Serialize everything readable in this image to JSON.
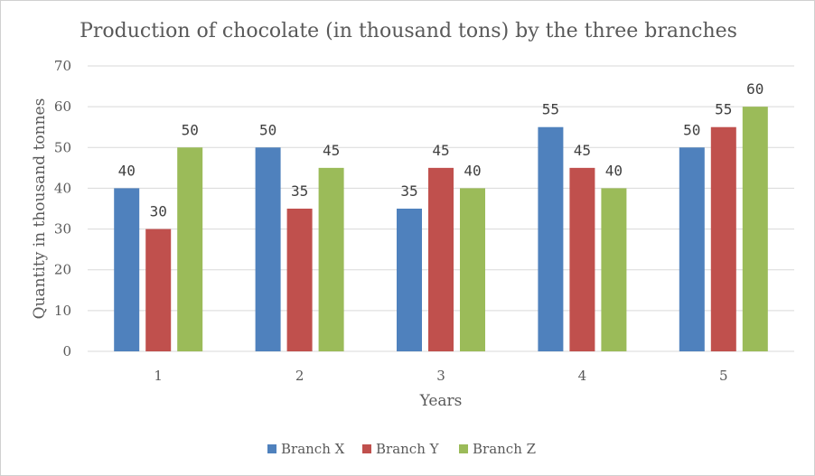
{
  "chart_data": {
    "type": "bar",
    "title": "Production of chocolate (in thousand tons) by the three branches",
    "xlabel": "Years",
    "ylabel": "Quantity in thousand tonnes",
    "categories": [
      "1",
      "2",
      "3",
      "4",
      "5"
    ],
    "ylim": [
      0,
      70
    ],
    "yticks": [
      0,
      10,
      20,
      30,
      40,
      50,
      60,
      70
    ],
    "grid": true,
    "legend_position": "bottom",
    "series": [
      {
        "name": "Branch X",
        "color": "#4f81bd",
        "values": [
          40,
          50,
          35,
          55,
          50
        ]
      },
      {
        "name": "Branch Y",
        "color": "#c0504d",
        "values": [
          30,
          35,
          45,
          45,
          55
        ]
      },
      {
        "name": "Branch Z",
        "color": "#9bbb59",
        "values": [
          50,
          45,
          40,
          40,
          60
        ]
      }
    ]
  }
}
